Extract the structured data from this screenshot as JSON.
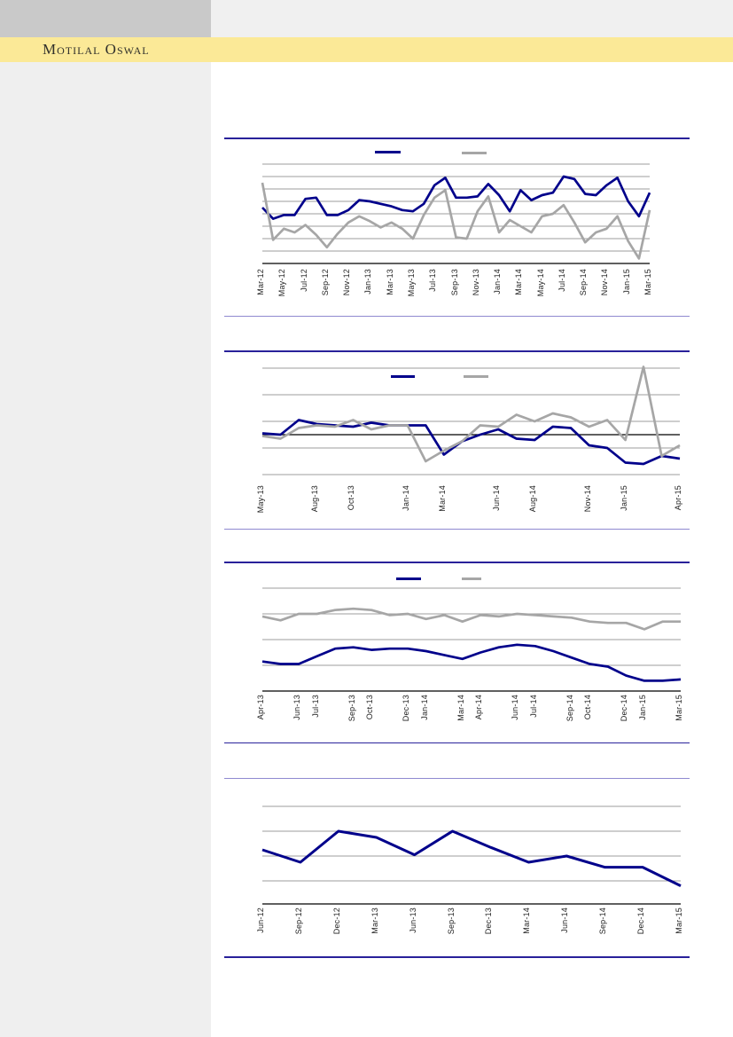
{
  "header": {
    "brand": "Motilal Oswal",
    "band_color": "#FBE997"
  },
  "colors": {
    "series_navy": "#00008B",
    "series_gray": "#A6A6A6",
    "border_dark": "#29219A",
    "border_light": "#8F89D0",
    "gridline": "#9E9E9E",
    "axis_black": "#000000",
    "sidebar_gray": "#EFEFEF",
    "top_block_gray": "#C9C9C9"
  },
  "chart_data": [
    {
      "type": "line",
      "title": "",
      "y_unit": "gridline-units (no y-axis labels visible)",
      "ylim": [
        0,
        8
      ],
      "gridline_values": [
        1,
        2,
        3,
        4,
        5,
        6,
        7,
        8
      ],
      "n_points": 37,
      "x_tick_labels": [
        "Mar-12",
        "May-12",
        "Jul-12",
        "Sep-12",
        "Nov-12",
        "Jan-13",
        "Mar-13",
        "May-13",
        "Jul-13",
        "Sep-13",
        "Nov-13",
        "Jan-14",
        "Mar-14",
        "May-14",
        "Jul-14",
        "Sep-14",
        "Nov-14",
        "Jan-15",
        "Mar-15"
      ],
      "tick_indices": [
        0,
        2,
        4,
        6,
        8,
        10,
        12,
        14,
        16,
        18,
        20,
        22,
        24,
        26,
        28,
        30,
        32,
        34,
        36
      ],
      "legend": [
        {
          "label": "",
          "color": "#00008B"
        },
        {
          "label": "",
          "color": "#A6A6A6"
        }
      ],
      "series": [
        {
          "name": "navy",
          "color": "#00008B",
          "values": [
            4.5,
            3.6,
            3.9,
            3.9,
            5.2,
            5.3,
            3.9,
            3.9,
            4.3,
            5.1,
            5.0,
            4.8,
            4.6,
            4.3,
            4.2,
            4.8,
            6.3,
            6.9,
            5.3,
            5.3,
            5.4,
            6.4,
            5.5,
            4.2,
            5.9,
            5.1,
            5.5,
            5.7,
            7.0,
            6.8,
            5.6,
            5.5,
            6.3,
            6.9,
            5.0,
            3.8,
            5.7
          ]
        },
        {
          "name": "gray",
          "color": "#A6A6A6",
          "values": [
            6.5,
            1.9,
            2.8,
            2.5,
            3.1,
            2.3,
            1.3,
            2.4,
            3.3,
            3.8,
            3.4,
            2.9,
            3.3,
            2.8,
            2.0,
            3.9,
            5.3,
            5.9,
            2.1,
            2.0,
            4.2,
            5.4,
            2.5,
            3.5,
            3.0,
            2.5,
            3.8,
            4.0,
            4.7,
            3.3,
            1.7,
            2.5,
            2.8,
            3.8,
            1.8,
            0.4,
            4.3
          ]
        }
      ]
    },
    {
      "type": "line",
      "title": "",
      "y_unit": "gridline-units around zero baseline (no y-axis labels visible)",
      "ylim": [
        -1.5,
        2.5
      ],
      "gridline_values": [
        2.5,
        1.5,
        0.5,
        -0.5,
        -1.5
      ],
      "zero_baseline": 0,
      "n_points": 24,
      "x_tick_labels": [
        "May-13",
        "Aug-13",
        "Oct-13",
        "Jan-14",
        "Mar-14",
        "Jun-14",
        "Aug-14",
        "Nov-14",
        "Jan-15",
        "Apr-15"
      ],
      "tick_indices": [
        0,
        3,
        5,
        8,
        10,
        13,
        15,
        18,
        20,
        23
      ],
      "legend": [
        {
          "label": "",
          "color": "#00008B"
        },
        {
          "label": "",
          "color": "#A6A6A6"
        }
      ],
      "series": [
        {
          "name": "navy",
          "color": "#00008B",
          "values": [
            0.05,
            0.0,
            0.55,
            0.4,
            0.35,
            0.3,
            0.45,
            0.35,
            0.35,
            0.35,
            -0.75,
            -0.25,
            0.0,
            0.2,
            -0.15,
            -0.2,
            0.3,
            0.25,
            -0.4,
            -0.5,
            -1.05,
            -1.1,
            -0.8,
            -0.9
          ]
        },
        {
          "name": "gray",
          "color": "#A6A6A6",
          "values": [
            -0.05,
            -0.15,
            0.25,
            0.35,
            0.3,
            0.55,
            0.2,
            0.35,
            0.35,
            -1.0,
            -0.6,
            -0.25,
            0.35,
            0.3,
            0.75,
            0.5,
            0.8,
            0.65,
            0.3,
            0.55,
            -0.2,
            2.55,
            -0.8,
            -0.4
          ]
        }
      ]
    },
    {
      "type": "line",
      "title": "",
      "y_unit": "gridline-units (no y-axis labels visible)",
      "ylim": [
        0,
        4.3
      ],
      "gridline_values": [
        1,
        2,
        3,
        4
      ],
      "n_points": 24,
      "x_tick_labels": [
        "Apr-13",
        "Jun-13",
        "Jul-13",
        "Sep-13",
        "Oct-13",
        "Dec-13",
        "Jan-14",
        "Mar-14",
        "Apr-14",
        "Jun-14",
        "Jul-14",
        "Sep-14",
        "Oct-14",
        "Dec-14",
        "Jan-15",
        "Mar-15"
      ],
      "tick_indices": [
        0,
        2,
        3,
        5,
        6,
        8,
        9,
        11,
        12,
        14,
        15,
        17,
        18,
        20,
        21,
        23
      ],
      "legend": [
        {
          "label": "",
          "color": "#00008B"
        },
        {
          "label": "",
          "color": "#A6A6A6"
        }
      ],
      "series": [
        {
          "name": "navy",
          "color": "#00008B",
          "values": [
            1.15,
            1.05,
            1.05,
            1.35,
            1.65,
            1.7,
            1.6,
            1.65,
            1.65,
            1.55,
            1.4,
            1.25,
            1.5,
            1.7,
            1.8,
            1.75,
            1.55,
            1.3,
            1.05,
            0.95,
            0.6,
            0.4,
            0.4,
            0.45
          ]
        },
        {
          "name": "gray",
          "color": "#A6A6A6",
          "values": [
            2.9,
            2.75,
            3.0,
            3.0,
            3.15,
            3.2,
            3.15,
            2.95,
            3.0,
            2.8,
            2.95,
            2.7,
            2.95,
            2.9,
            3.0,
            2.95,
            2.9,
            2.85,
            2.7,
            2.65,
            2.65,
            2.4,
            2.7,
            2.7
          ]
        }
      ]
    },
    {
      "type": "line",
      "title": "",
      "y_unit": "gridline-units (no y-axis labels visible)",
      "ylim": [
        0,
        4.5
      ],
      "gridline_values": [
        1,
        2,
        3,
        4
      ],
      "n_points": 12,
      "x_tick_labels": [
        "Jun-12",
        "Sep-12",
        "Dec-12",
        "Mar-13",
        "Jun-13",
        "Sep-13",
        "Dec-13",
        "Mar-14",
        "Jun-14",
        "Sep-14",
        "Dec-14",
        "Mar-15"
      ],
      "tick_indices": [
        0,
        1,
        2,
        3,
        4,
        5,
        6,
        7,
        8,
        9,
        10,
        11
      ],
      "legend": [],
      "series": [
        {
          "name": "navy",
          "color": "#00008B",
          "values": [
            2.25,
            1.75,
            3.0,
            2.75,
            2.05,
            3.0,
            2.35,
            1.75,
            2.0,
            1.55,
            1.55,
            0.8
          ]
        }
      ]
    }
  ]
}
